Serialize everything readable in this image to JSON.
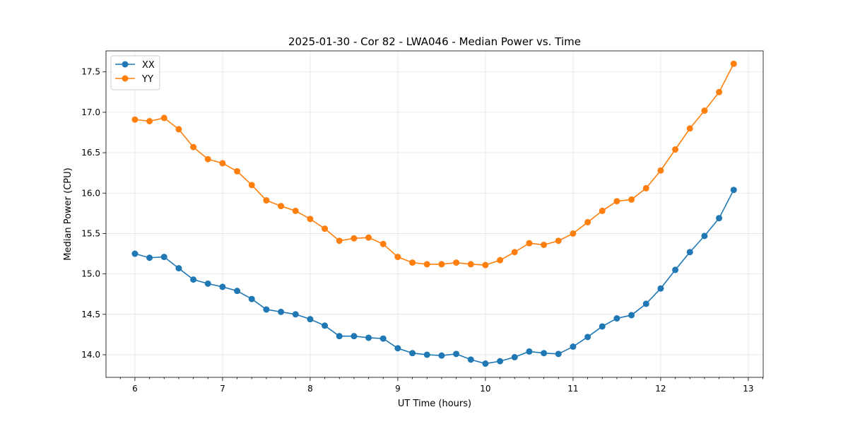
{
  "chart_data": {
    "type": "line",
    "title": "2025-01-30 - Cor 82 - LWA046 - Median Power vs. Time",
    "xlabel": "UT Time (hours)",
    "ylabel": "Median Power (CPU)",
    "xlim": [
      5.67,
      13.17
    ],
    "ylim": [
      13.72,
      17.76
    ],
    "xticks": [
      6,
      7,
      8,
      9,
      10,
      11,
      12,
      13
    ],
    "xtick_labels": [
      "6",
      "7",
      "8",
      "9",
      "10",
      "11",
      "12",
      "13"
    ],
    "yticks": [
      14.0,
      14.5,
      15.0,
      15.5,
      16.0,
      16.5,
      17.0,
      17.5
    ],
    "ytick_labels": [
      "14.0",
      "14.5",
      "15.0",
      "15.5",
      "16.0",
      "16.5",
      "17.0",
      "17.5"
    ],
    "grid": true,
    "legend_position": "top-left",
    "x": [
      6.0,
      6.1667,
      6.3333,
      6.5,
      6.6667,
      6.8333,
      7.0,
      7.1667,
      7.3333,
      7.5,
      7.6667,
      7.8333,
      8.0,
      8.1667,
      8.3333,
      8.5,
      8.6667,
      8.8333,
      9.0,
      9.1667,
      9.3333,
      9.5,
      9.6667,
      9.8333,
      10.0,
      10.1667,
      10.3333,
      10.5,
      10.6667,
      10.8333,
      11.0,
      11.1667,
      11.3333,
      11.5,
      11.6667,
      11.8333,
      12.0,
      12.1667,
      12.3333,
      12.5,
      12.6667,
      12.8333
    ],
    "series": [
      {
        "name": "XX",
        "color": "#1f77b4",
        "values": [
          15.25,
          15.2,
          15.21,
          15.07,
          14.93,
          14.88,
          14.84,
          14.79,
          14.69,
          14.56,
          14.53,
          14.5,
          14.44,
          14.36,
          14.23,
          14.23,
          14.21,
          14.2,
          14.08,
          14.02,
          14.0,
          13.99,
          14.01,
          13.94,
          13.89,
          13.92,
          13.97,
          14.04,
          14.02,
          14.01,
          14.1,
          14.22,
          14.35,
          14.45,
          14.49,
          14.63,
          14.82,
          15.05,
          15.27,
          15.47,
          15.69,
          16.04
        ]
      },
      {
        "name": "YY",
        "color": "#ff7f0e",
        "values": [
          16.91,
          16.89,
          16.93,
          16.79,
          16.57,
          16.42,
          16.37,
          16.27,
          16.1,
          15.91,
          15.84,
          15.78,
          15.68,
          15.56,
          15.41,
          15.44,
          15.45,
          15.37,
          15.21,
          15.14,
          15.12,
          15.12,
          15.14,
          15.12,
          15.11,
          15.17,
          15.27,
          15.38,
          15.36,
          15.41,
          15.5,
          15.64,
          15.78,
          15.9,
          15.92,
          16.06,
          16.28,
          16.54,
          16.8,
          17.02,
          17.25,
          17.6
        ]
      }
    ]
  }
}
